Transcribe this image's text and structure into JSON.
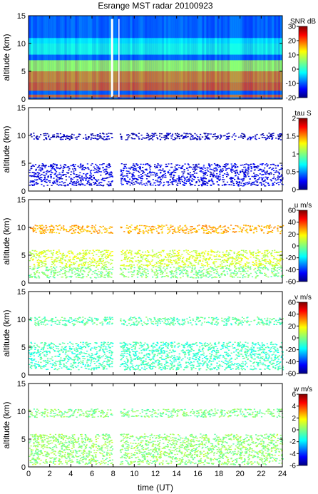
{
  "chart_data": {
    "type": "heatmap",
    "title": "Esrange MST radar 20100923",
    "xlabel": "time (UT)",
    "xlim": [
      0,
      24
    ],
    "xticks": [
      "0",
      "2",
      "4",
      "6",
      "8",
      "10",
      "12",
      "14",
      "16",
      "18",
      "20",
      "22",
      "24"
    ],
    "ylabel": "altitude (km)",
    "ylim": [
      0,
      15
    ],
    "yticks": [
      "0",
      "5",
      "10",
      "15"
    ],
    "colormap": "jet",
    "panels": [
      {
        "id": "snr",
        "colorbar_label": "SNR dB",
        "clim": [
          -20,
          30
        ],
        "colorbar_ticks": [
          "-20",
          "-10",
          "0",
          "10",
          "20",
          "30"
        ],
        "layers": [
          {
            "range_km": [
              0.3,
              0.8
            ],
            "value": 20
          },
          {
            "range_km": [
              1.5,
              3
            ],
            "value": 20
          },
          {
            "range_km": [
              3,
              5
            ],
            "value": 18
          },
          {
            "range_km": [
              5,
              7
            ],
            "value": 8
          },
          {
            "range_km": [
              8,
              10
            ],
            "value": 0
          },
          {
            "range_km": [
              10,
              11
            ],
            "value": -2
          },
          {
            "range_km": [
              11,
              15
            ],
            "value": -10
          }
        ],
        "data_gaps_hours": [
          [
            7.8,
            8.0
          ],
          [
            8.5,
            8.6
          ]
        ]
      },
      {
        "id": "tau",
        "colorbar_label": "tau S",
        "clim": [
          0,
          2
        ],
        "colorbar_ticks": [
          "0",
          "0.5",
          "1",
          "1.5",
          "2"
        ],
        "layers": [
          {
            "range_km": [
              1,
              5
            ],
            "value": 0.2
          },
          {
            "range_km": [
              9.3,
              10.5
            ],
            "value": 0.1
          }
        ]
      },
      {
        "id": "u",
        "colorbar_label": "u m/s",
        "clim": [
          -60,
          60
        ],
        "colorbar_ticks": [
          "-60",
          "-40",
          "-20",
          "0",
          "20",
          "40",
          "60"
        ],
        "layers": [
          {
            "range_km": [
              1,
              3
            ],
            "value": 0
          },
          {
            "range_km": [
              3,
              6
            ],
            "value": 10
          },
          {
            "range_km": [
              9,
              10.5
            ],
            "value": 25
          }
        ]
      },
      {
        "id": "v",
        "colorbar_label": "v m/s",
        "clim": [
          -60,
          60
        ],
        "colorbar_ticks": [
          "-60",
          "-40",
          "-20",
          "0",
          "20",
          "40",
          "60"
        ],
        "layers": [
          {
            "range_km": [
              1,
              6
            ],
            "value": -8
          },
          {
            "range_km": [
              9,
              10.5
            ],
            "value": -5
          }
        ]
      },
      {
        "id": "w",
        "colorbar_label": "w m/s",
        "clim": [
          -6,
          6
        ],
        "colorbar_ticks": [
          "-6",
          "-4",
          "-2",
          "0",
          "2",
          "4",
          "6"
        ],
        "layers": [
          {
            "range_km": [
              0.5,
              6
            ],
            "value": 0.2
          },
          {
            "range_km": [
              9,
              10.5
            ],
            "value": 0
          }
        ]
      }
    ]
  }
}
